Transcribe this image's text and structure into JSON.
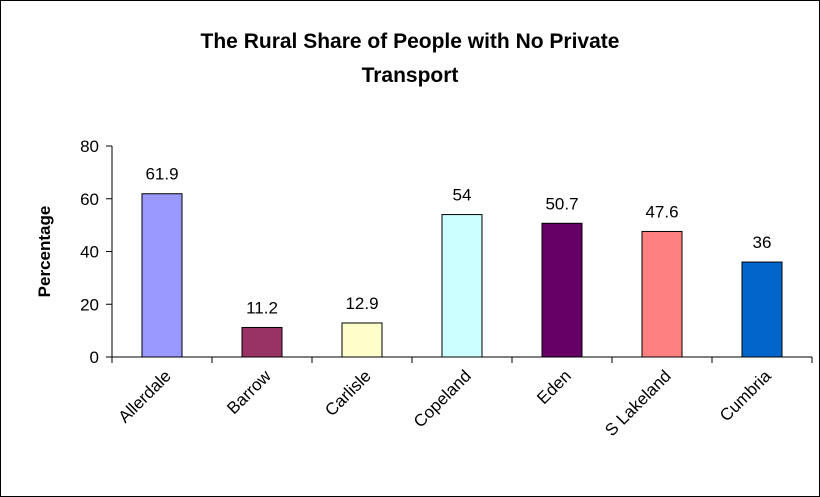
{
  "chart_data": {
    "type": "bar",
    "title_lines": [
      "The Rural Share of People with No Private",
      "Transport"
    ],
    "xlabel": "",
    "ylabel": "Percentage",
    "ylim": [
      0,
      80
    ],
    "yticks": [
      0,
      20,
      40,
      60,
      80
    ],
    "grid": false,
    "legend": "none",
    "categories": [
      "Allerdale",
      "Barrow",
      "Carlisle",
      "Copeland",
      "Eden",
      "S Lakeland",
      "Cumbria"
    ],
    "values": [
      61.9,
      11.2,
      12.9,
      54,
      50.7,
      47.6,
      36
    ],
    "data_labels": [
      "61.9",
      "11.2",
      "12.9",
      "54",
      "50.7",
      "47.6",
      "36"
    ],
    "bar_colors": [
      "#9999ff",
      "#993366",
      "#ffffcc",
      "#ccffff",
      "#660066",
      "#ff8080",
      "#0066cc"
    ]
  }
}
